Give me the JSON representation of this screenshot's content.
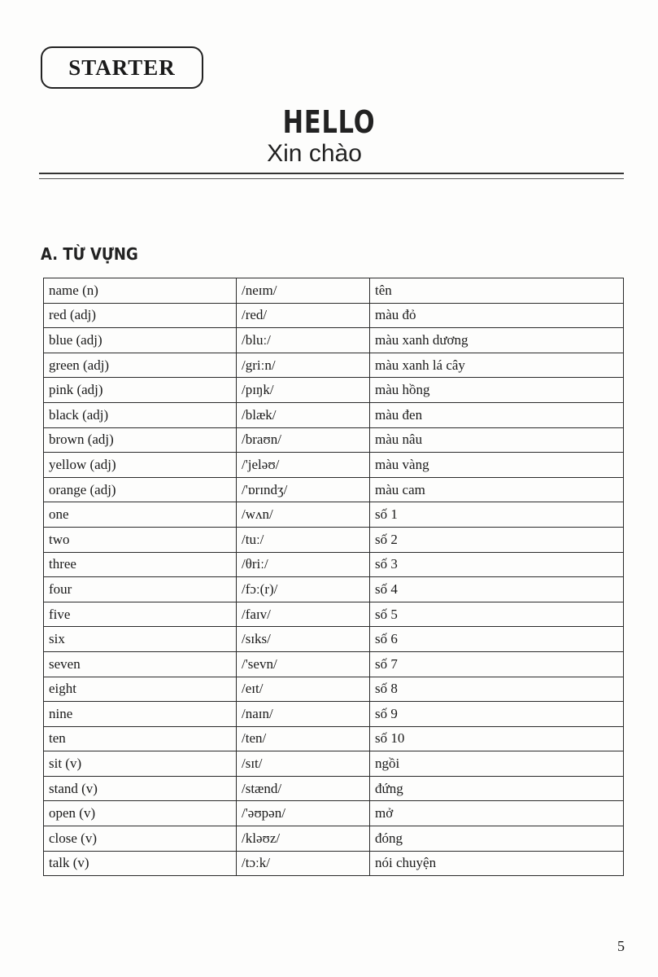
{
  "header": {
    "unit_label": "STARTER",
    "title": "HELLO",
    "subtitle": "Xin chào"
  },
  "section": {
    "heading": "A. TỪ VỰNG"
  },
  "vocabulary": [
    [
      "name (n)",
      "/neɪm/",
      "tên"
    ],
    [
      "red (adj)",
      "/red/",
      "màu đỏ"
    ],
    [
      "blue (adj)",
      "/bluː/",
      "màu xanh dương"
    ],
    [
      "green (adj)",
      "/griːn/",
      "màu xanh lá cây"
    ],
    [
      "pink (adj)",
      "/pɪŋk/",
      "màu hồng"
    ],
    [
      "black (adj)",
      "/blæk/",
      "màu đen"
    ],
    [
      "brown (adj)",
      "/braʊn/",
      "màu nâu"
    ],
    [
      "yellow (adj)",
      "/'jeləʊ/",
      "màu vàng"
    ],
    [
      "orange (adj)",
      "/'ɒrɪndʒ/",
      "màu cam"
    ],
    [
      "one",
      "/wʌn/",
      "số 1"
    ],
    [
      "two",
      "/tuː/",
      "số 2"
    ],
    [
      "three",
      "/θriː/",
      "số 3"
    ],
    [
      "four",
      "/fɔː(r)/",
      "số 4"
    ],
    [
      "five",
      "/faɪv/",
      "số 5"
    ],
    [
      "six",
      "/sɪks/",
      "số 6"
    ],
    [
      "seven",
      "/'sevn/",
      "số 7"
    ],
    [
      "eight",
      "/eɪt/",
      "số 8"
    ],
    [
      "nine",
      "/naɪn/",
      "số 9"
    ],
    [
      "ten",
      "/ten/",
      "số 10"
    ],
    [
      "sit (v)",
      "/sɪt/",
      "ngồi"
    ],
    [
      "stand (v)",
      "/stænd/",
      "đứng"
    ],
    [
      "open (v)",
      "/'əʊpən/",
      "mở"
    ],
    [
      "close (v)",
      "/kləʊz/",
      "đóng"
    ],
    [
      "talk (v)",
      "/tɔːk/",
      "nói chuyện"
    ]
  ],
  "footer": {
    "page_number": "5"
  }
}
